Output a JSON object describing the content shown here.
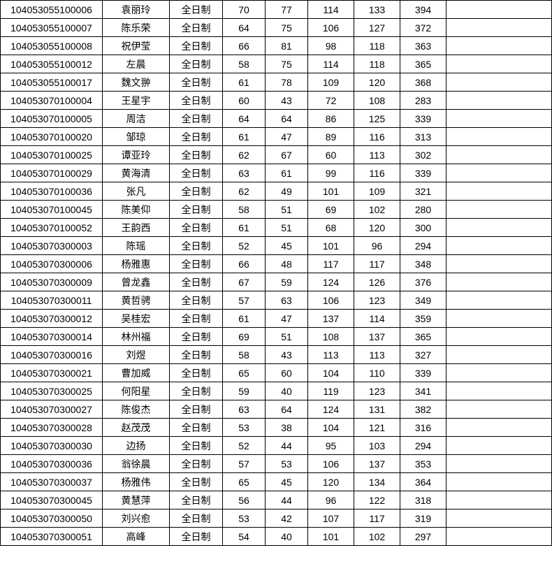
{
  "table": {
    "columns": [
      {
        "key": "id",
        "class": "col-id"
      },
      {
        "key": "name",
        "class": "col-name"
      },
      {
        "key": "type",
        "class": "col-type"
      },
      {
        "key": "s1",
        "class": "col-s1"
      },
      {
        "key": "s2",
        "class": "col-s2"
      },
      {
        "key": "s3",
        "class": "col-s3"
      },
      {
        "key": "s4",
        "class": "col-s4"
      },
      {
        "key": "tot",
        "class": "col-tot"
      },
      {
        "key": "blank",
        "class": "col-blank"
      }
    ],
    "rows": [
      {
        "id": "104053055100006",
        "name": "袁丽玲",
        "type": "全日制",
        "s1": "70",
        "s2": "77",
        "s3": "114",
        "s4": "133",
        "tot": "394",
        "blank": ""
      },
      {
        "id": "104053055100007",
        "name": "陈乐荣",
        "type": "全日制",
        "s1": "64",
        "s2": "75",
        "s3": "106",
        "s4": "127",
        "tot": "372",
        "blank": ""
      },
      {
        "id": "104053055100008",
        "name": "祝伊莹",
        "type": "全日制",
        "s1": "66",
        "s2": "81",
        "s3": "98",
        "s4": "118",
        "tot": "363",
        "blank": ""
      },
      {
        "id": "104053055100012",
        "name": "左晨",
        "type": "全日制",
        "s1": "58",
        "s2": "75",
        "s3": "114",
        "s4": "118",
        "tot": "365",
        "blank": ""
      },
      {
        "id": "104053055100017",
        "name": "魏文翀",
        "type": "全日制",
        "s1": "61",
        "s2": "78",
        "s3": "109",
        "s4": "120",
        "tot": "368",
        "blank": ""
      },
      {
        "id": "104053070100004",
        "name": "王星宇",
        "type": "全日制",
        "s1": "60",
        "s2": "43",
        "s3": "72",
        "s4": "108",
        "tot": "283",
        "blank": ""
      },
      {
        "id": "104053070100005",
        "name": "周洁",
        "type": "全日制",
        "s1": "64",
        "s2": "64",
        "s3": "86",
        "s4": "125",
        "tot": "339",
        "blank": ""
      },
      {
        "id": "104053070100020",
        "name": "邹琼",
        "type": "全日制",
        "s1": "61",
        "s2": "47",
        "s3": "89",
        "s4": "116",
        "tot": "313",
        "blank": ""
      },
      {
        "id": "104053070100025",
        "name": "谭亚玲",
        "type": "全日制",
        "s1": "62",
        "s2": "67",
        "s3": "60",
        "s4": "113",
        "tot": "302",
        "blank": ""
      },
      {
        "id": "104053070100029",
        "name": "黄海清",
        "type": "全日制",
        "s1": "63",
        "s2": "61",
        "s3": "99",
        "s4": "116",
        "tot": "339",
        "blank": ""
      },
      {
        "id": "104053070100036",
        "name": "张凡",
        "type": "全日制",
        "s1": "62",
        "s2": "49",
        "s3": "101",
        "s4": "109",
        "tot": "321",
        "blank": ""
      },
      {
        "id": "104053070100045",
        "name": "陈美仰",
        "type": "全日制",
        "s1": "58",
        "s2": "51",
        "s3": "69",
        "s4": "102",
        "tot": "280",
        "blank": ""
      },
      {
        "id": "104053070100052",
        "name": "王韵西",
        "type": "全日制",
        "s1": "61",
        "s2": "51",
        "s3": "68",
        "s4": "120",
        "tot": "300",
        "blank": ""
      },
      {
        "id": "104053070300003",
        "name": "陈瑶",
        "type": "全日制",
        "s1": "52",
        "s2": "45",
        "s3": "101",
        "s4": "96",
        "tot": "294",
        "blank": ""
      },
      {
        "id": "104053070300006",
        "name": "杨雅惠",
        "type": "全日制",
        "s1": "66",
        "s2": "48",
        "s3": "117",
        "s4": "117",
        "tot": "348",
        "blank": ""
      },
      {
        "id": "104053070300009",
        "name": "曾龙鑫",
        "type": "全日制",
        "s1": "67",
        "s2": "59",
        "s3": "124",
        "s4": "126",
        "tot": "376",
        "blank": ""
      },
      {
        "id": "104053070300011",
        "name": "黄哲骋",
        "type": "全日制",
        "s1": "57",
        "s2": "63",
        "s3": "106",
        "s4": "123",
        "tot": "349",
        "blank": ""
      },
      {
        "id": "104053070300012",
        "name": "吴桂宏",
        "type": "全日制",
        "s1": "61",
        "s2": "47",
        "s3": "137",
        "s4": "114",
        "tot": "359",
        "blank": ""
      },
      {
        "id": "104053070300014",
        "name": "林州福",
        "type": "全日制",
        "s1": "69",
        "s2": "51",
        "s3": "108",
        "s4": "137",
        "tot": "365",
        "blank": ""
      },
      {
        "id": "104053070300016",
        "name": "刘煜",
        "type": "全日制",
        "s1": "58",
        "s2": "43",
        "s3": "113",
        "s4": "113",
        "tot": "327",
        "blank": ""
      },
      {
        "id": "104053070300021",
        "name": "曹加威",
        "type": "全日制",
        "s1": "65",
        "s2": "60",
        "s3": "104",
        "s4": "110",
        "tot": "339",
        "blank": ""
      },
      {
        "id": "104053070300025",
        "name": "何阳星",
        "type": "全日制",
        "s1": "59",
        "s2": "40",
        "s3": "119",
        "s4": "123",
        "tot": "341",
        "blank": ""
      },
      {
        "id": "104053070300027",
        "name": "陈俊杰",
        "type": "全日制",
        "s1": "63",
        "s2": "64",
        "s3": "124",
        "s4": "131",
        "tot": "382",
        "blank": ""
      },
      {
        "id": "104053070300028",
        "name": "赵茂茂",
        "type": "全日制",
        "s1": "53",
        "s2": "38",
        "s3": "104",
        "s4": "121",
        "tot": "316",
        "blank": ""
      },
      {
        "id": "104053070300030",
        "name": "边扬",
        "type": "全日制",
        "s1": "52",
        "s2": "44",
        "s3": "95",
        "s4": "103",
        "tot": "294",
        "blank": ""
      },
      {
        "id": "104053070300036",
        "name": "翁徐晨",
        "type": "全日制",
        "s1": "57",
        "s2": "53",
        "s3": "106",
        "s4": "137",
        "tot": "353",
        "blank": ""
      },
      {
        "id": "104053070300037",
        "name": "杨雅伟",
        "type": "全日制",
        "s1": "65",
        "s2": "45",
        "s3": "120",
        "s4": "134",
        "tot": "364",
        "blank": ""
      },
      {
        "id": "104053070300045",
        "name": "黄慧萍",
        "type": "全日制",
        "s1": "56",
        "s2": "44",
        "s3": "96",
        "s4": "122",
        "tot": "318",
        "blank": ""
      },
      {
        "id": "104053070300050",
        "name": "刘兴愈",
        "type": "全日制",
        "s1": "53",
        "s2": "42",
        "s3": "107",
        "s4": "117",
        "tot": "319",
        "blank": ""
      },
      {
        "id": "104053070300051",
        "name": "高峰",
        "type": "全日制",
        "s1": "54",
        "s2": "40",
        "s3": "101",
        "s4": "102",
        "tot": "297",
        "blank": ""
      }
    ]
  }
}
